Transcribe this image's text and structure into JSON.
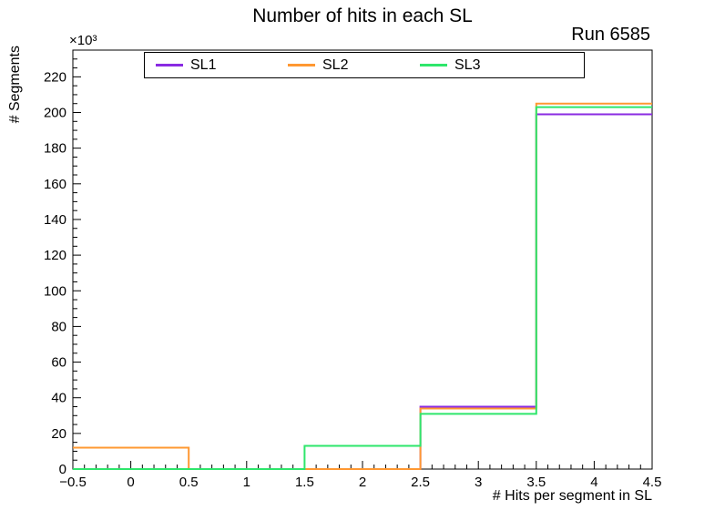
{
  "page": {
    "background": "#ffffff"
  },
  "chart_data": {
    "type": "step-histogram",
    "title": "Number of hits in each SL",
    "annotation": "Run 6585",
    "xlabel": "# Hits per segment in SL",
    "ylabel": "# Segments",
    "y_axis_multiplier": "×10³",
    "value_unit": "segments ×10³",
    "xlim": [
      -0.5,
      4.5
    ],
    "ylim": [
      0,
      235
    ],
    "grid": false,
    "legend": {
      "position": "top-inside",
      "border": true
    },
    "bin_edges": [
      -0.5,
      0.5,
      1.5,
      2.5,
      3.5,
      4.5
    ],
    "series": [
      {
        "name": "SL1",
        "color": "#8a2be2",
        "values": [
          0,
          0,
          0,
          35,
          199
        ]
      },
      {
        "name": "SL2",
        "color": "#ff9832",
        "values": [
          12,
          0,
          0,
          34,
          205
        ]
      },
      {
        "name": "SL3",
        "color": "#2ee66b",
        "values": [
          0,
          0,
          13,
          31,
          203
        ]
      }
    ],
    "y_ticks": [
      0,
      20,
      40,
      60,
      80,
      100,
      120,
      140,
      160,
      180,
      200,
      220
    ],
    "y_tick_labels": [
      "0",
      "20",
      "40",
      "60",
      "80",
      "100",
      "120",
      "140",
      "160",
      "180",
      "200",
      "220"
    ],
    "y_minor_step": 5,
    "x_ticks": [
      -0.5,
      0,
      0.5,
      1,
      1.5,
      2,
      2.5,
      3,
      3.5,
      4,
      4.5
    ],
    "x_tick_labels": [
      "−0.5",
      "0",
      "0.5",
      "1",
      "1.5",
      "2",
      "2.5",
      "3",
      "3.5",
      "4",
      "4.5"
    ],
    "x_minor_step": 0.1
  }
}
